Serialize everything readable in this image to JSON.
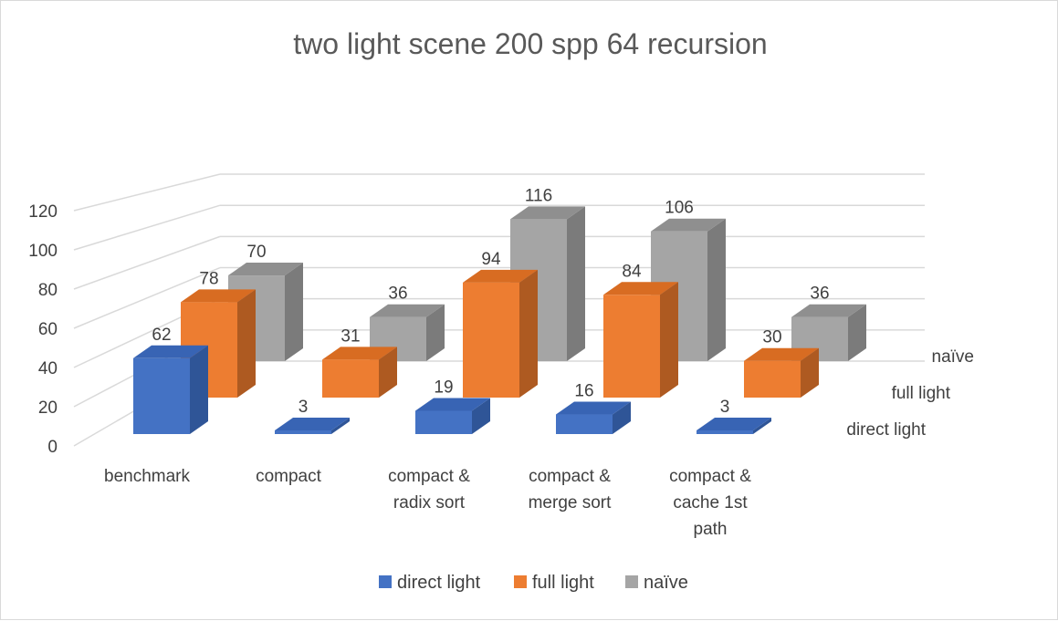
{
  "chart_data": {
    "type": "bar",
    "variant": "3d-column",
    "title": "two light scene 200 spp 64 recursion",
    "categories": [
      [
        "benchmark"
      ],
      [
        "compact"
      ],
      [
        "compact &",
        "radix sort"
      ],
      [
        "compact &",
        "merge sort"
      ],
      [
        "compact &",
        "cache 1st",
        "path"
      ]
    ],
    "series": [
      {
        "name": "direct light",
        "color": "#4472c4",
        "side": "#2f5597",
        "top": "#3864b4",
        "values": [
          62,
          3,
          19,
          16,
          3
        ]
      },
      {
        "name": "full light",
        "color": "#ed7d31",
        "side": "#ae5a21",
        "top": "#d86c22",
        "values": [
          78,
          31,
          94,
          84,
          30
        ]
      },
      {
        "name": "naïve",
        "color": "#a5a5a5",
        "side": "#7b7b7b",
        "top": "#8f8f8f",
        "values": [
          70,
          36,
          116,
          106,
          36
        ]
      }
    ],
    "y_ticks": [
      "0",
      "20",
      "40",
      "60",
      "80",
      "100",
      "120"
    ],
    "ylim": [
      0,
      120
    ],
    "gridlines": true,
    "legend": "bottom"
  }
}
